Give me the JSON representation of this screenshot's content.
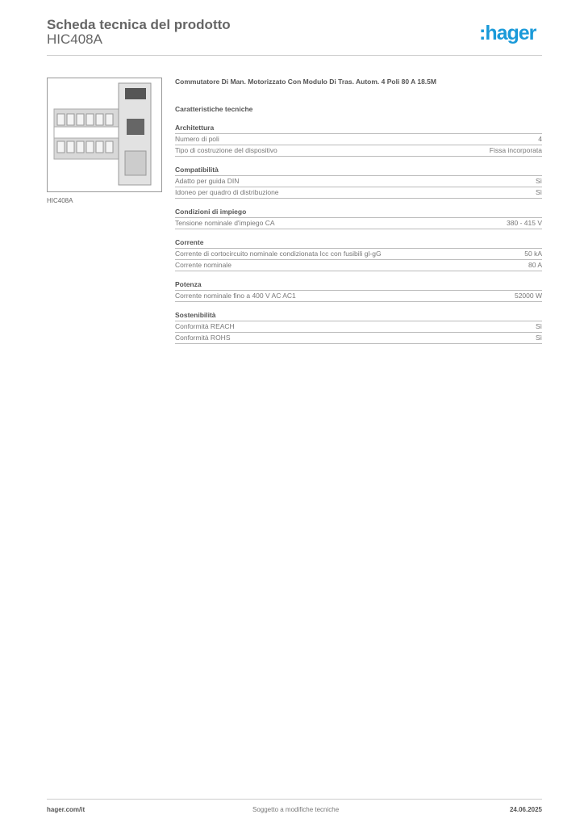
{
  "header": {
    "title": "Scheda tecnica del prodotto",
    "product_code": "HIC408A",
    "logo": ":hager"
  },
  "image": {
    "caption": "HIC408A"
  },
  "product_title": "Commutatore Di Man. Motorizzato Con Modulo Di Tras. Autom. 4 Poli 80 A 18.5M",
  "section_title": "Caratteristiche tecniche",
  "groups": [
    {
      "title": "Architettura",
      "rows": [
        {
          "label": "Numero di poli",
          "value": "4"
        },
        {
          "label": "Tipo di costruzione del dispositivo",
          "value": "Fissa incorporata"
        }
      ]
    },
    {
      "title": "Compatibilità",
      "rows": [
        {
          "label": "Adatto per guida DIN",
          "value": "Sì"
        },
        {
          "label": "Idoneo per quadro di distribuzione",
          "value": "Sì"
        }
      ]
    },
    {
      "title": "Condizioni di impiego",
      "rows": [
        {
          "label": "Tensione nominale d'impiego CA",
          "value": "380 - 415 V"
        }
      ]
    },
    {
      "title": "Corrente",
      "rows": [
        {
          "label": "Corrente di cortocircuito nominale condizionata Icc con fusibili gl-gG",
          "value": "50 kA"
        },
        {
          "label": "Corrente nominale",
          "value": "80 A"
        }
      ]
    },
    {
      "title": "Potenza",
      "rows": [
        {
          "label": "Corrente nominale fino a 400 V AC AC1",
          "value": "52000 W"
        }
      ]
    },
    {
      "title": "Sostenibilità",
      "rows": [
        {
          "label": "Conformità REACH",
          "value": "Sì"
        },
        {
          "label": "Conformità ROHS",
          "value": "Sì"
        }
      ]
    }
  ],
  "footer": {
    "website": "hager.com/it",
    "note": "Soggetto a modifiche tecniche",
    "date": "24.06.2025"
  },
  "colors": {
    "brand": "#1a9ad9"
  }
}
